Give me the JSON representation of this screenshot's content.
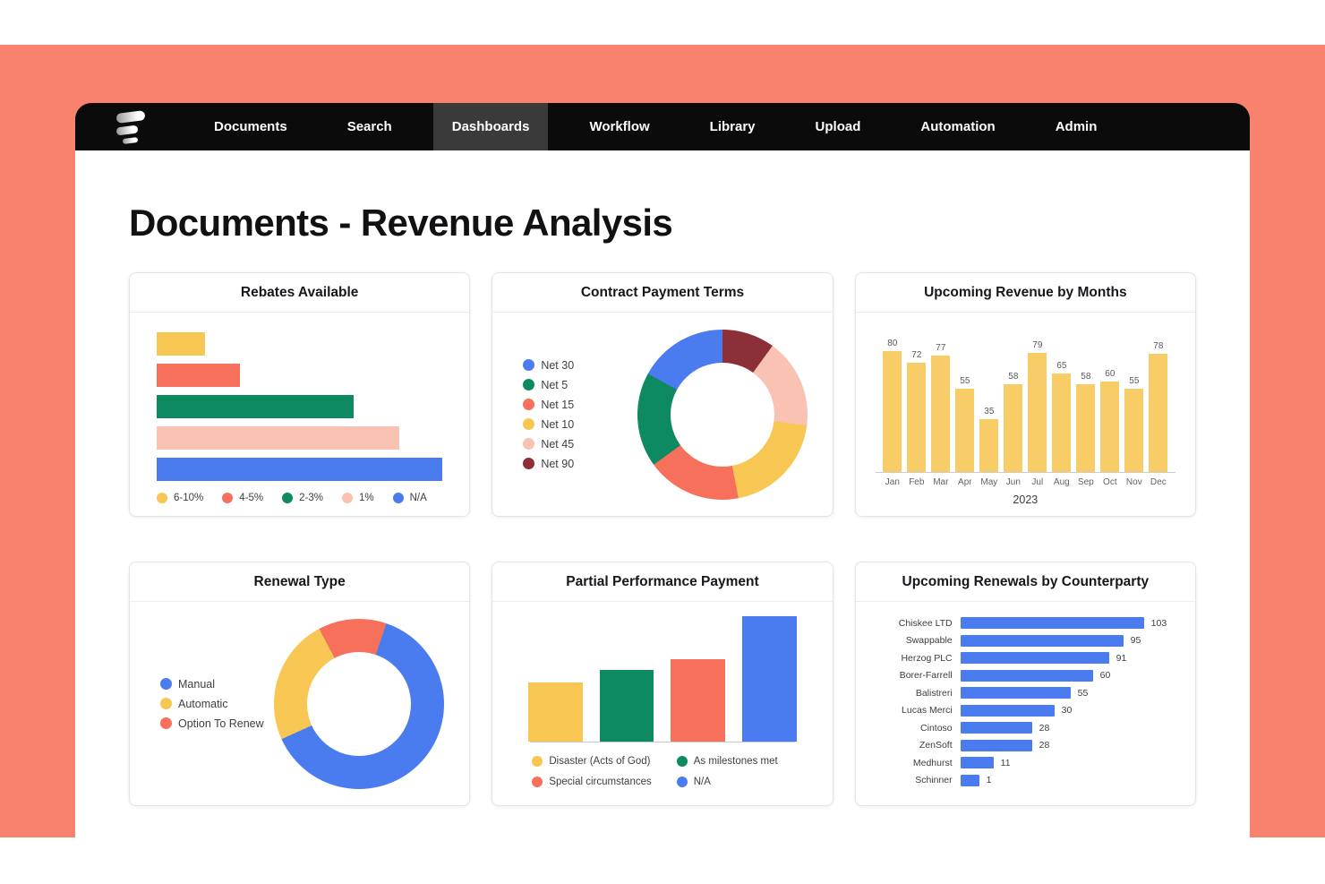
{
  "nav": {
    "logo_name": "evisort-logo",
    "items": [
      {
        "label": "Documents",
        "active": false
      },
      {
        "label": "Search",
        "active": false
      },
      {
        "label": "Dashboards",
        "active": true
      },
      {
        "label": "Workflow",
        "active": false
      },
      {
        "label": "Library",
        "active": false
      },
      {
        "label": "Upload",
        "active": false
      },
      {
        "label": "Automation",
        "active": false
      },
      {
        "label": "Admin",
        "active": false
      }
    ]
  },
  "page": {
    "title": "Documents - Revenue Analysis"
  },
  "palette": {
    "yellow": "#F8C653",
    "yellowLight": "#F8CD67",
    "salmon": "#F7705C",
    "green": "#0E8A62",
    "pink": "#F9C2B2",
    "blue": "#4A7CF0",
    "maroon": "#8C2F39"
  },
  "ui_colors": {
    "coral_background": "#F8826D",
    "nav_black": "#0B0B0B",
    "nav_active": "#3A3A3A",
    "card_border": "#E4E4E7",
    "text_dark": "#17171C",
    "text_gray": "#3C4043"
  },
  "chart_data": [
    {
      "layout": "rebates",
      "type": "bar",
      "orientation": "horizontal",
      "title": "Rebates Available",
      "categories": [
        "6-10%",
        "4-5%",
        "2-3%",
        "1%",
        "N/A"
      ],
      "values_pct_of_max": [
        17,
        29,
        69,
        85,
        100
      ],
      "colors": [
        "yellow",
        "salmon",
        "green",
        "pink",
        "blue"
      ],
      "legend_position": "bottom",
      "data_labels": false
    },
    {
      "layout": "donut",
      "type": "pie",
      "title": "Contract Payment Terms",
      "labels": [
        "Net 30",
        "Net 5",
        "Net 15",
        "Net 10",
        "Net 45",
        "Net 90"
      ],
      "values_pct": [
        17,
        18,
        18,
        20,
        17,
        10
      ],
      "colors": [
        "blue",
        "green",
        "salmon",
        "yellow",
        "pink",
        "maroon"
      ],
      "start_angle_deg": 0,
      "clockwise_order": [
        5,
        4,
        3,
        2,
        1,
        0
      ],
      "legend_position": "left"
    },
    {
      "layout": "months",
      "type": "bar",
      "orientation": "vertical",
      "title": "Upcoming Revenue by Months",
      "categories": [
        "Jan",
        "Feb",
        "Mar",
        "Apr",
        "May",
        "Jun",
        "Jul",
        "Aug",
        "Sep",
        "Oct",
        "Nov",
        "Dec"
      ],
      "values": [
        80,
        72,
        77,
        55,
        35,
        58,
        79,
        65,
        58,
        60,
        55,
        78
      ],
      "xlabel": "2023",
      "ylim": [
        0,
        80
      ],
      "colors": [
        "yellowLight"
      ],
      "data_labels": true,
      "grid": false
    },
    {
      "layout": "donut",
      "type": "pie",
      "title": "Renewal Type",
      "labels": [
        "Manual",
        "Automatic",
        "Option To Renew"
      ],
      "values_pct": [
        63,
        24,
        13
      ],
      "colors": [
        "blue",
        "yellow",
        "salmon"
      ],
      "start_angle_deg": -28,
      "clockwise_order": [
        2,
        0,
        1
      ],
      "legend_position": "left"
    },
    {
      "layout": "partial",
      "type": "bar",
      "orientation": "vertical",
      "title": "Partial Performance Payment",
      "categories": [
        "Disaster (Acts of God)",
        "As milestones met",
        "Special circumstances",
        "N/A"
      ],
      "values_pct_of_max": [
        47,
        57,
        66,
        100
      ],
      "bar_order": [
        0,
        1,
        2,
        3
      ],
      "colors": [
        "yellow",
        "green",
        "salmon",
        "blue"
      ],
      "legend_position": "bottom",
      "legend_columns": 2,
      "data_labels": false
    },
    {
      "layout": "counterparty",
      "type": "bar",
      "orientation": "horizontal",
      "title": "Upcoming Renewals by Counterparty",
      "categories": [
        "Chiskee LTD",
        "Swappable",
        "Herzog PLC",
        "Borer-Farrell",
        "Balistreri",
        "Lucas Merci",
        "Cintoso",
        "ZenSoft",
        "Medhurst",
        "Schinner"
      ],
      "values": [
        103,
        95,
        91,
        60,
        55,
        30,
        28,
        28,
        11,
        1
      ],
      "bar_display_pct": [
        100,
        89,
        81,
        72,
        60,
        51,
        39,
        39,
        18,
        10
      ],
      "colors": [
        "blue"
      ],
      "data_labels": true
    }
  ]
}
